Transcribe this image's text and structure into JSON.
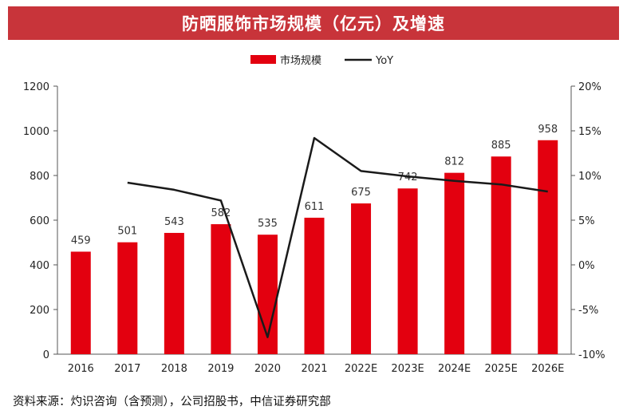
{
  "title": "防晒服饰市场规模（亿元）及增速",
  "source": "资料来源：灼识咨询（含预测），公司招股书，中信证券研究部",
  "colors": {
    "bar": "#e3000f",
    "line": "#1a1a1a",
    "title_bg": "#c8343a"
  },
  "chart_data": {
    "type": "bar",
    "categories": [
      "2016",
      "2017",
      "2018",
      "2019",
      "2020",
      "2021",
      "2022E",
      "2023E",
      "2024E",
      "2025E",
      "2026E"
    ],
    "series": [
      {
        "name": "市场规模",
        "type": "bar",
        "axis": "left",
        "values": [
          459,
          501,
          543,
          582,
          535,
          611,
          675,
          742,
          812,
          885,
          958
        ],
        "labels": [
          "459",
          "501",
          "543",
          "582",
          "535",
          "611",
          "675",
          "742",
          "812",
          "885",
          "958"
        ]
      },
      {
        "name": "YoY",
        "type": "line",
        "axis": "right",
        "values": [
          null,
          9.2,
          8.4,
          7.2,
          -8.1,
          14.2,
          10.5,
          9.9,
          9.4,
          9.0,
          8.2
        ]
      }
    ],
    "y_left": {
      "min": 0,
      "max": 1200,
      "ticks": [
        "0",
        "200",
        "400",
        "600",
        "800",
        "1000",
        "1200"
      ]
    },
    "y_right": {
      "min": -10,
      "max": 20,
      "ticks": [
        "-10%",
        "-5%",
        "0%",
        "5%",
        "10%",
        "15%",
        "20%"
      ]
    },
    "legend": {
      "position": "top-center",
      "items": [
        "市场规模",
        "YoY"
      ]
    },
    "grid": false
  }
}
